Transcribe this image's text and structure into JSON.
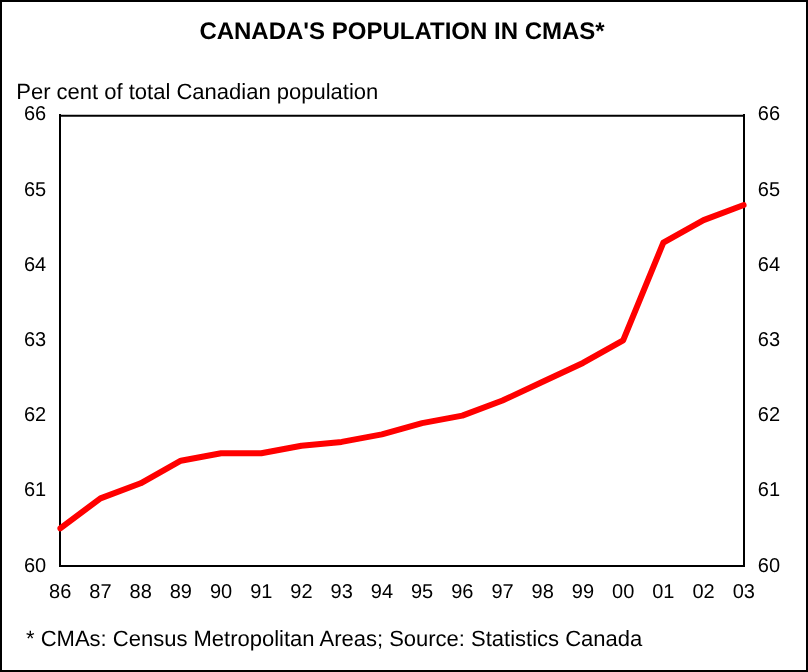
{
  "chart_data": {
    "type": "line",
    "title": "CANADA'S POPULATION IN CMAS*",
    "ylabel": "Per cent of total Canadian population",
    "categories": [
      "86",
      "87",
      "88",
      "89",
      "90",
      "91",
      "92",
      "93",
      "94",
      "95",
      "96",
      "97",
      "98",
      "99",
      "00",
      "01",
      "02",
      "03"
    ],
    "series": [
      {
        "color": "#ff0000",
        "values": [
          60.5,
          60.9,
          61.1,
          61.4,
          61.5,
          61.5,
          61.6,
          61.65,
          61.75,
          61.9,
          62.0,
          62.2,
          62.45,
          62.7,
          63.0,
          64.3,
          64.6,
          64.8
        ]
      }
    ],
    "ylim": [
      60,
      66
    ],
    "yticks": [
      60,
      61,
      62,
      63,
      64,
      65,
      66
    ],
    "y2lim": [
      60,
      66
    ],
    "y2ticks": [
      60,
      61,
      62,
      63,
      64,
      65,
      66
    ],
    "grid": false,
    "legend": false,
    "marker": "none",
    "line_style": "solid",
    "annotations": [
      "* CMAs: Census Metropolitan Areas; Source: Statistics Canada"
    ]
  }
}
